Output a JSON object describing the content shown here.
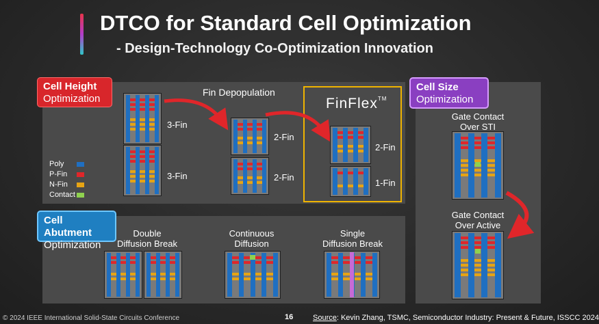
{
  "title": "DTCO for Standard Cell Optimization",
  "subtitle": "- Design-Technology Co-Optimization Innovation",
  "colors": {
    "poly": "#1f6fc1",
    "p_fin": "#e0262a",
    "n_fin": "#e6a414",
    "contact": "#8fd14f",
    "finflex_border": "#f0b400"
  },
  "cell_height": {
    "tag_bold": "Cell Height",
    "tag_sub": "Optimization",
    "fin_depopulation": "Fin Depopulation",
    "finflex_logo": "FinFlex",
    "finflex_tm": "TM",
    "labels": {
      "top_3fin": "3-Fin",
      "bot_3fin": "3-Fin",
      "mid_2fin_top": "2-Fin",
      "mid_2fin_bot": "2-Fin",
      "ff_2fin": "2-Fin",
      "ff_1fin": "1-Fin"
    }
  },
  "legend": {
    "poly": "Poly",
    "p_fin": "P-Fin",
    "n_fin": "N-Fin",
    "contact": "Contact"
  },
  "cell_abutment": {
    "tag_bold": "Cell Abutment",
    "tag_sub": "Optimization",
    "double_l1": "Double",
    "double_l2": "Diffusion Break",
    "continuous_l1": "Continuous",
    "continuous_l2": "Diffusion",
    "single_l1": "Single",
    "single_l2": "Diffusion Break"
  },
  "cell_size": {
    "tag_bold": "Cell Size",
    "tag_sub": "Optimization",
    "sti_l1": "Gate Contact",
    "sti_l2": "Over STI",
    "active_l1": "Gate Contact",
    "active_l2": "Over Active"
  },
  "footer": {
    "copyright": "© 2024 IEEE International Solid-State Circuits Conference",
    "page": "16",
    "source_label": "Source",
    "source_text": ": Kevin Zhang, TSMC, Semiconductor Industry: Present & Future, ISSCC 2024"
  }
}
